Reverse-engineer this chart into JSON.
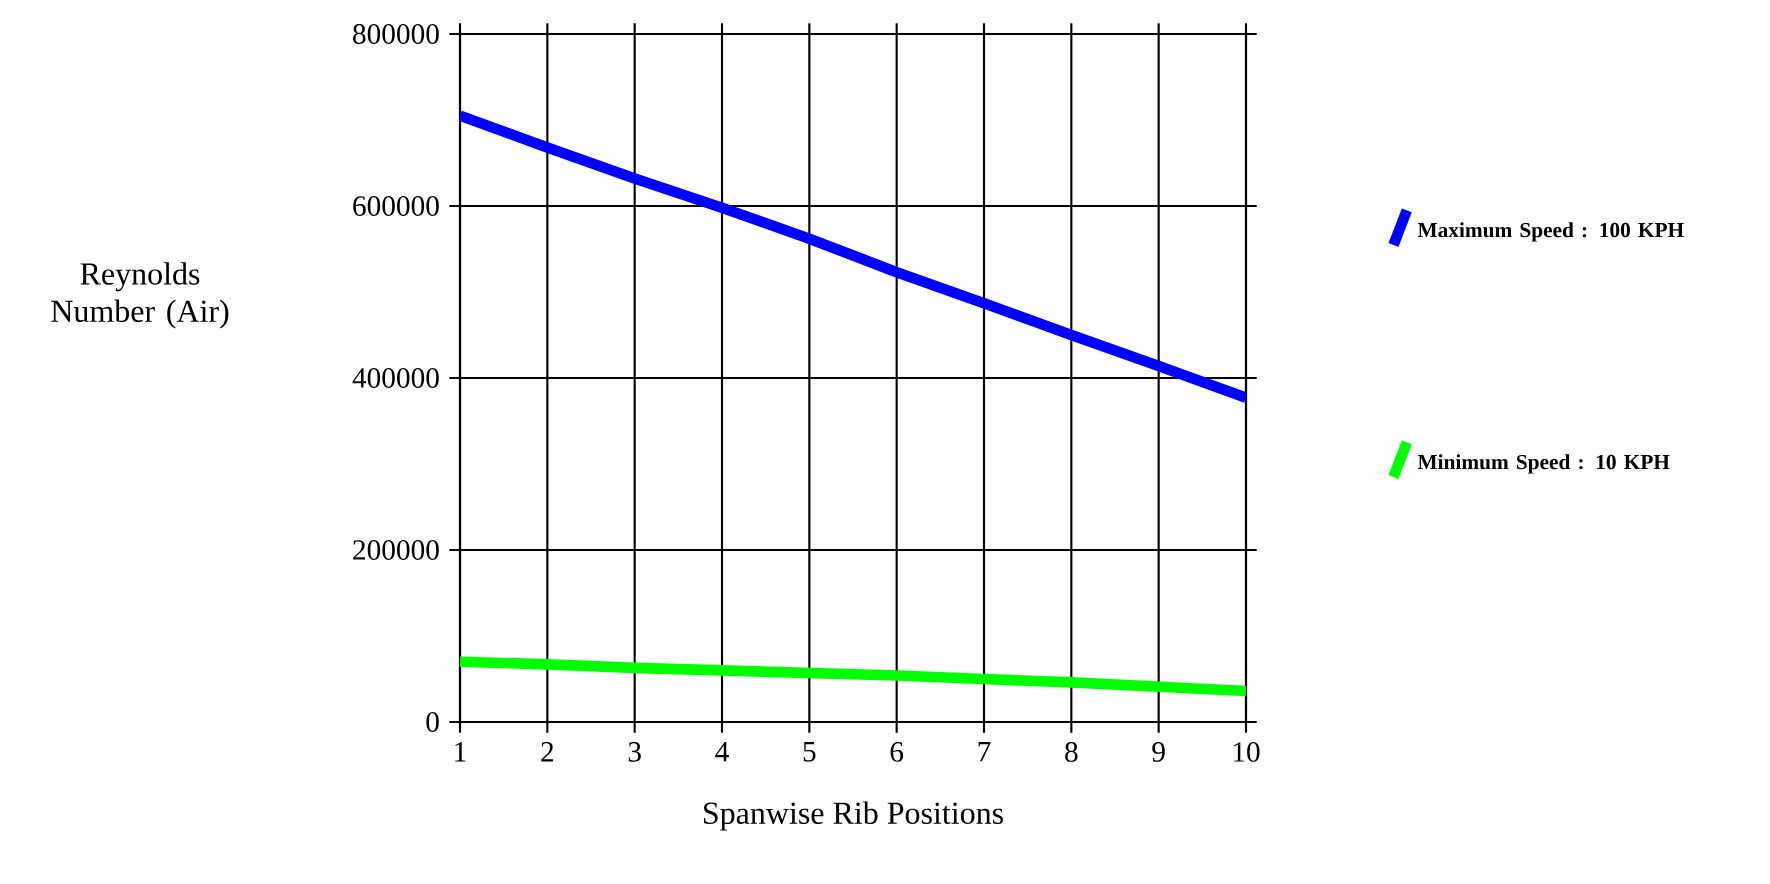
{
  "chart_data": {
    "type": "line",
    "xlabel": "Spanwise Rib Positions",
    "ylabel": "Reynolds Number (Air)",
    "x": [
      1,
      2,
      3,
      4,
      5,
      6,
      7,
      8,
      9,
      10
    ],
    "series": [
      {
        "name": "Maximum Speed : 100 KPH",
        "color": "#0000ff",
        "values": [
          705000,
          668000,
          632000,
          598000,
          562000,
          523000,
          487000,
          450000,
          414000,
          377000
        ]
      },
      {
        "name": "Minimum Speed : 10 KPH",
        "color": "#00ff00",
        "values": [
          70000,
          67000,
          63000,
          60000,
          57000,
          54000,
          50000,
          46000,
          41000,
          36000
        ]
      }
    ],
    "xlim": [
      1,
      10
    ],
    "xticks": [
      1,
      2,
      3,
      4,
      5,
      6,
      7,
      8,
      9,
      10
    ],
    "ylim": [
      0,
      800000
    ],
    "yticks": [
      0,
      200000,
      400000,
      600000,
      800000
    ],
    "grid": true,
    "legend": "right"
  }
}
